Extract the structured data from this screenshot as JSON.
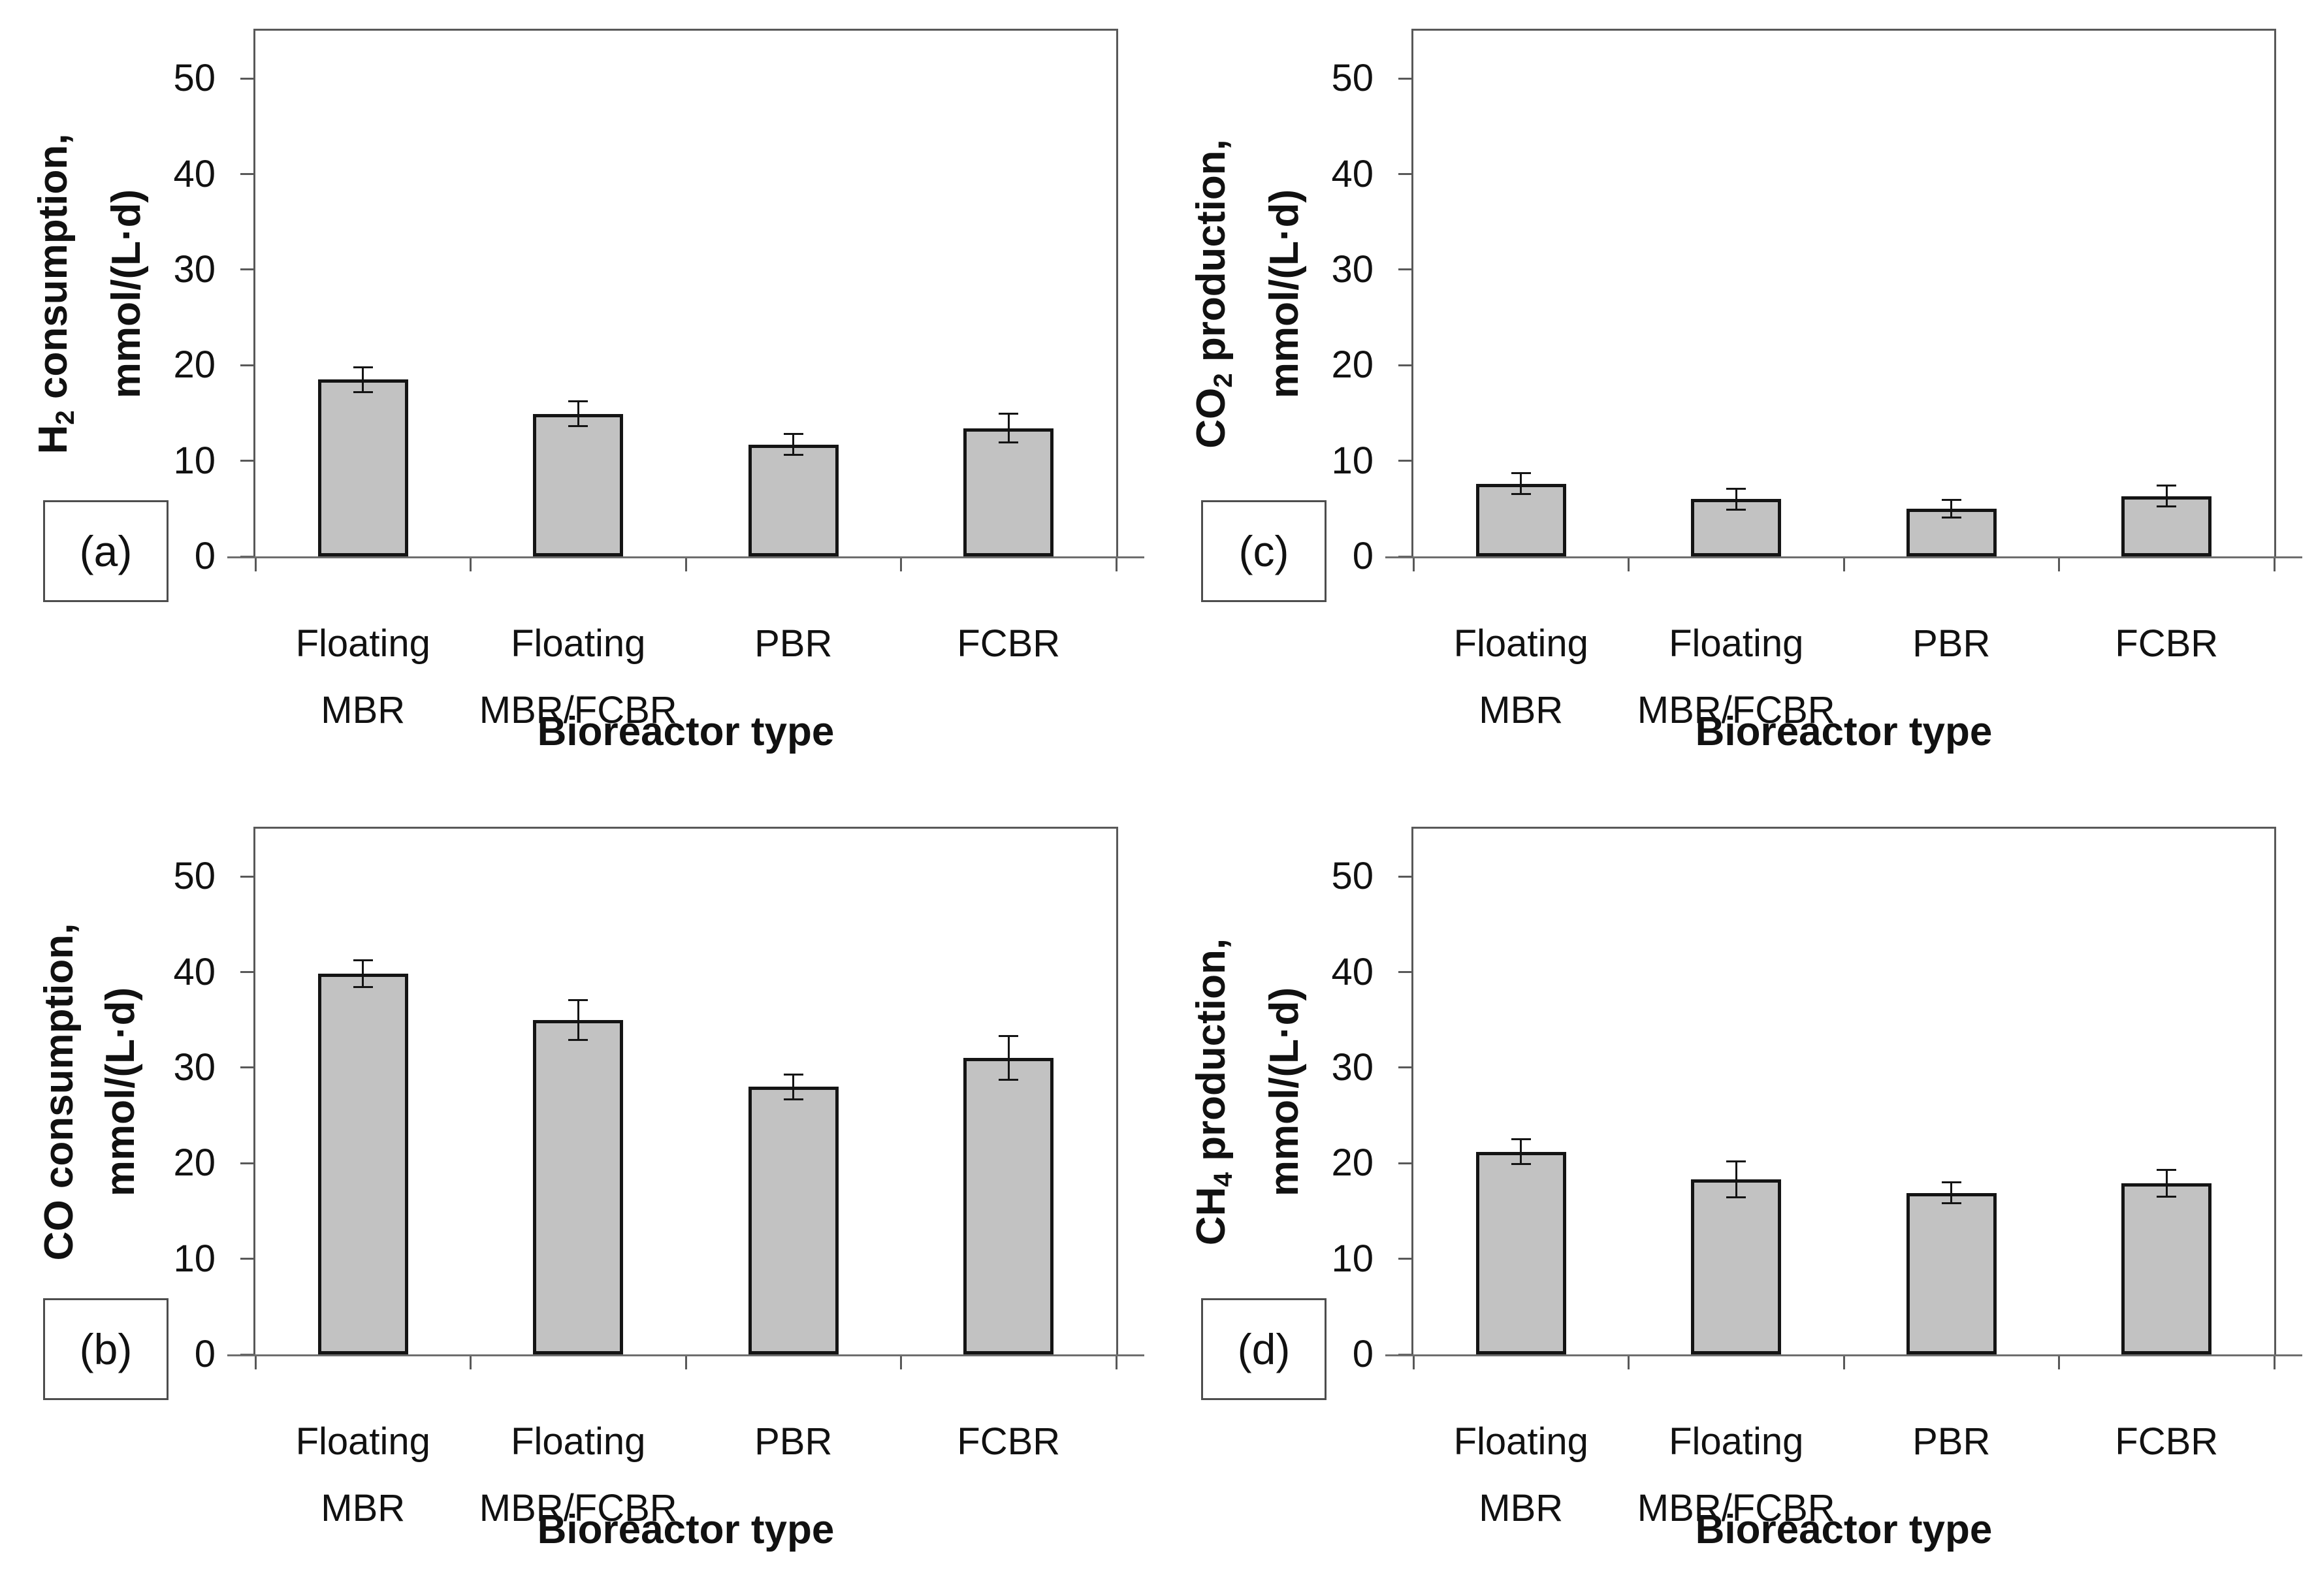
{
  "figure": {
    "background": "#ffffff",
    "bar_fill": "#c2c2c2",
    "bar_border": "#141414",
    "frame_color": "#595959",
    "error_color": "#141414",
    "text_color": "#111111",
    "xlabel": "Bioreactor type",
    "categories_lines": [
      [
        "Floating",
        "MBR"
      ],
      [
        "Floating",
        "MBR/FCBR"
      ],
      [
        "PBR"
      ],
      [
        "FCBR"
      ]
    ],
    "yticks": [
      0,
      10,
      20,
      30,
      40,
      50
    ],
    "ymax": 55,
    "grid": "off",
    "legend": "none"
  },
  "chart_data": [
    {
      "type": "bar",
      "panel": "(a)",
      "position": "top-left",
      "ylabel_line1": [
        {
          "text": "H"
        },
        {
          "text": "2",
          "sub": true
        },
        {
          "text": " consumption,"
        }
      ],
      "ylabel_line2": "mmol/(L·d)",
      "xlabel": "Bioreactor type",
      "categories": [
        "Floating MBR",
        "Floating MBR/FCBR",
        "PBR",
        "FCBR"
      ],
      "values": [
        18.5,
        14.9,
        11.7,
        13.4
      ],
      "errors": [
        1.3,
        1.3,
        1.1,
        1.5
      ],
      "ylim": [
        0,
        55
      ]
    },
    {
      "type": "bar",
      "panel": "(c)",
      "position": "top-right",
      "ylabel_line1": [
        {
          "text": "CO"
        },
        {
          "text": "2",
          "sub": true
        },
        {
          "text": " production,"
        }
      ],
      "ylabel_line2": "mmol/(L·d)",
      "xlabel": "Bioreactor type",
      "categories": [
        "Floating MBR",
        "Floating MBR/FCBR",
        "PBR",
        "FCBR"
      ],
      "values": [
        7.6,
        6.0,
        5.0,
        6.3
      ],
      "errors": [
        1.1,
        1.1,
        0.9,
        1.1
      ],
      "ylim": [
        0,
        55
      ]
    },
    {
      "type": "bar",
      "panel": "(b)",
      "position": "bottom-left",
      "ylabel_line1": [
        {
          "text": "CO consumption,"
        }
      ],
      "ylabel_line2": "mmol/(L·d)",
      "xlabel": "Bioreactor type",
      "categories": [
        "Floating MBR",
        "Floating MBR/FCBR",
        "PBR",
        "FCBR"
      ],
      "values": [
        39.8,
        35.0,
        28.0,
        31.0
      ],
      "errors": [
        1.4,
        2.1,
        1.3,
        2.3
      ],
      "ylim": [
        0,
        55
      ]
    },
    {
      "type": "bar",
      "panel": "(d)",
      "position": "bottom-right",
      "ylabel_line1": [
        {
          "text": "CH"
        },
        {
          "text": "4",
          "sub": true
        },
        {
          "text": " production,"
        }
      ],
      "ylabel_line2": "mmol/(L·d)",
      "xlabel": "Bioreactor type",
      "categories": [
        "Floating MBR",
        "Floating MBR/FCBR",
        "PBR",
        "FCBR"
      ],
      "values": [
        21.2,
        18.3,
        16.9,
        17.9
      ],
      "errors": [
        1.3,
        1.9,
        1.1,
        1.4
      ],
      "ylim": [
        0,
        55
      ]
    }
  ]
}
